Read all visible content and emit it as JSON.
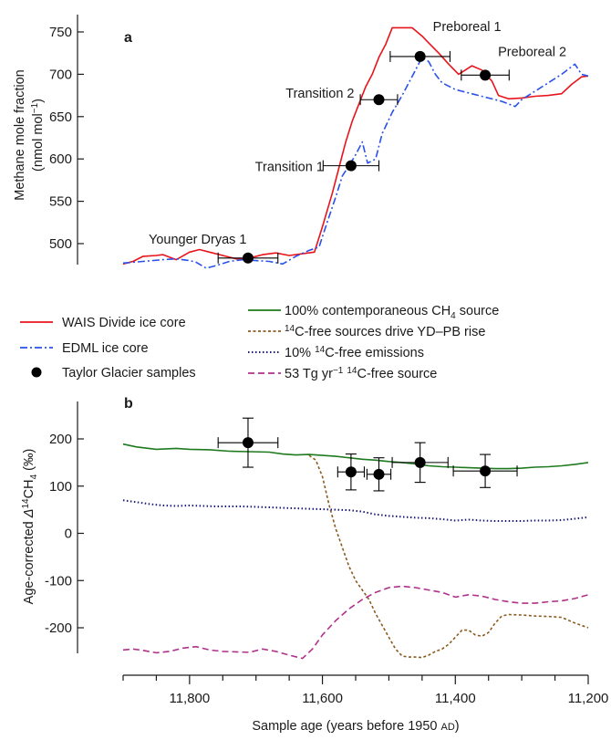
{
  "chart_data": [
    {
      "type": "line",
      "panel_label": "a",
      "ylabel_line1": "Methane mole fraction",
      "ylabel_line2": "(nmol mol",
      "ylabel_sup": "−1",
      "ylabel_close": ")",
      "xlim": [
        11900,
        11200
      ],
      "ylim": [
        470,
        760
      ],
      "yticks": [
        500,
        550,
        600,
        650,
        700,
        750
      ],
      "series": [
        {
          "name": "WAIS Divide ice core",
          "color": "#e8141c",
          "style": "solid",
          "x": [
            11900,
            11885,
            11870,
            11850,
            11840,
            11820,
            11800,
            11785,
            11770,
            11750,
            11730,
            11710,
            11690,
            11670,
            11650,
            11630,
            11612,
            11600,
            11585,
            11575,
            11565,
            11555,
            11545,
            11535,
            11525,
            11515,
            11505,
            11495,
            11480,
            11465,
            11450,
            11440,
            11425,
            11410,
            11395,
            11385,
            11375,
            11360,
            11345,
            11335,
            11320,
            11300,
            11280,
            11260,
            11240,
            11225,
            11210,
            11200
          ],
          "y": [
            476,
            479,
            485,
            486,
            487,
            481,
            490,
            493,
            490,
            486,
            482,
            483,
            487,
            489,
            486,
            488,
            490,
            520,
            560,
            590,
            620,
            645,
            665,
            685,
            700,
            720,
            735,
            755,
            755,
            755,
            745,
            737,
            725,
            712,
            700,
            705,
            710,
            705,
            692,
            675,
            671,
            672,
            674,
            675,
            677,
            688,
            697,
            698
          ]
        },
        {
          "name": "EDML ice core",
          "color": "#2a52e8",
          "style": "dashdot",
          "x": [
            11900,
            11870,
            11840,
            11820,
            11800,
            11790,
            11775,
            11760,
            11740,
            11720,
            11700,
            11680,
            11660,
            11640,
            11620,
            11605,
            11595,
            11580,
            11570,
            11560,
            11550,
            11540,
            11532,
            11520,
            11510,
            11495,
            11480,
            11470,
            11460,
            11450,
            11440,
            11430,
            11420,
            11400,
            11390,
            11370,
            11350,
            11330,
            11320,
            11310,
            11300,
            11280,
            11260,
            11240,
            11220,
            11210,
            11200
          ],
          "y": [
            477,
            479,
            481,
            482,
            480,
            478,
            471,
            474,
            479,
            481,
            480,
            479,
            476,
            485,
            492,
            496,
            520,
            555,
            580,
            592,
            605,
            620,
            595,
            600,
            630,
            655,
            675,
            690,
            705,
            720,
            715,
            700,
            690,
            682,
            680,
            676,
            672,
            668,
            665,
            662,
            670,
            680,
            690,
            700,
            712,
            700,
            698
          ]
        }
      ],
      "samples": {
        "name": "Taylor Glacier samples",
        "color": "#000000",
        "points": [
          {
            "label": "Younger Dryas 1",
            "x": 11712,
            "y": 483,
            "xerr": 45,
            "yerr": 3
          },
          {
            "label": "Transition 1",
            "x": 11557,
            "y": 592,
            "xerr": 42,
            "yerr": 3
          },
          {
            "label": "Transition 2",
            "x": 11515,
            "y": 670,
            "xerr": 28,
            "yerr": 3
          },
          {
            "label": "Preboreal 1",
            "x": 11453,
            "y": 721,
            "xerr": 45,
            "yerr": 3
          },
          {
            "label": "Preboreal 2",
            "x": 11355,
            "y": 699,
            "xerr": 36,
            "yerr": 3
          }
        ]
      }
    },
    {
      "type": "line",
      "panel_label": "b",
      "ylabel_pre": "Age-corrected ",
      "ylabel_delta": "Δ",
      "ylabel_sup": "14",
      "ylabel_post": "CH",
      "ylabel_sub": "4",
      "ylabel_unit": " (‰)",
      "xlabel": "Sample age (years before 1950 ",
      "xlabel_ad": "AD",
      "xlabel_close": ")",
      "xlim": [
        11900,
        11200
      ],
      "ylim": [
        -280,
        250
      ],
      "xticks": [
        11800,
        11600,
        11400,
        11200
      ],
      "xtick_labels": [
        "11,800",
        "11,600",
        "11,400",
        "11,200"
      ],
      "yticks": [
        200,
        100,
        0,
        -100,
        -200
      ],
      "ytick_labels": [
        "200",
        "100",
        "0",
        "-100",
        "-200"
      ],
      "series": [
        {
          "name": "100% contemporaneous CH4 source",
          "color": "#1e7a1e",
          "style": "solid",
          "x": [
            11900,
            11880,
            11850,
            11820,
            11800,
            11770,
            11740,
            11710,
            11680,
            11660,
            11640,
            11620,
            11600,
            11580,
            11560,
            11540,
            11520,
            11500,
            11480,
            11460,
            11440,
            11420,
            11400,
            11380,
            11360,
            11340,
            11320,
            11300,
            11280,
            11260,
            11240,
            11220,
            11200
          ],
          "y": [
            189,
            183,
            178,
            180,
            178,
            177,
            174,
            173,
            172,
            168,
            166,
            167,
            165,
            163,
            160,
            157,
            155,
            152,
            150,
            147,
            143,
            141,
            140,
            139,
            138,
            137,
            137,
            138,
            140,
            141,
            143,
            146,
            150
          ]
        },
        {
          "name": "14C-free sources drive YD–PB rise",
          "color": "#8a5a1e",
          "style": "dash",
          "x": [
            11620,
            11610,
            11600,
            11590,
            11580,
            11570,
            11560,
            11550,
            11540,
            11530,
            11520,
            11510,
            11500,
            11490,
            11480,
            11470,
            11460,
            11450,
            11440,
            11430,
            11420,
            11410,
            11400,
            11390,
            11380,
            11370,
            11360,
            11350,
            11340,
            11330,
            11320,
            11300,
            11280,
            11260,
            11240,
            11220,
            11200
          ],
          "y": [
            165,
            155,
            120,
            60,
            10,
            -30,
            -70,
            -100,
            -120,
            -140,
            -170,
            -195,
            -220,
            -245,
            -260,
            -262,
            -262,
            -263,
            -258,
            -250,
            -245,
            -235,
            -220,
            -205,
            -205,
            -215,
            -218,
            -210,
            -190,
            -175,
            -172,
            -173,
            -175,
            -176,
            -178,
            -190,
            -200
          ]
        },
        {
          "name": "10% 14C-free emissions",
          "color": "#1a1a6e",
          "style": "dot",
          "x": [
            11900,
            11880,
            11860,
            11840,
            11820,
            11800,
            11780,
            11760,
            11740,
            11720,
            11700,
            11680,
            11660,
            11640,
            11620,
            11600,
            11580,
            11560,
            11540,
            11520,
            11500,
            11480,
            11460,
            11440,
            11420,
            11400,
            11380,
            11360,
            11340,
            11320,
            11300,
            11280,
            11260,
            11240,
            11220,
            11200
          ],
          "y": [
            70,
            66,
            62,
            59,
            58,
            59,
            58,
            57,
            57,
            57,
            56,
            55,
            54,
            53,
            52,
            51,
            50,
            49,
            46,
            40,
            37,
            35,
            33,
            32,
            30,
            27,
            29,
            27,
            26,
            26,
            26,
            27,
            27,
            28,
            31,
            34
          ]
        },
        {
          "name": "53 Tg yr−1 14C-free source",
          "color": "#b0308a",
          "style": "longdash",
          "x": [
            11900,
            11885,
            11870,
            11850,
            11830,
            11810,
            11790,
            11770,
            11750,
            11730,
            11710,
            11690,
            11670,
            11650,
            11630,
            11615,
            11600,
            11580,
            11560,
            11540,
            11520,
            11500,
            11480,
            11460,
            11440,
            11420,
            11400,
            11380,
            11360,
            11340,
            11320,
            11300,
            11280,
            11260,
            11240,
            11220,
            11200
          ],
          "y": [
            -247,
            -245,
            -248,
            -253,
            -250,
            -243,
            -240,
            -247,
            -250,
            -251,
            -252,
            -245,
            -250,
            -258,
            -265,
            -245,
            -215,
            -185,
            -160,
            -140,
            -125,
            -115,
            -112,
            -115,
            -120,
            -125,
            -135,
            -130,
            -133,
            -140,
            -145,
            -148,
            -148,
            -145,
            -143,
            -138,
            -130
          ]
        }
      ],
      "samples": {
        "name": "Taylor Glacier samples",
        "color": "#000000",
        "points": [
          {
            "x": 11712,
            "y": 192,
            "xerr": 45,
            "yerr": 52
          },
          {
            "x": 11557,
            "y": 130,
            "xerr": 20,
            "yerr": 38
          },
          {
            "x": 11515,
            "y": 125,
            "xerr": 18,
            "yerr": 35
          },
          {
            "x": 11453,
            "y": 150,
            "xerr": 42,
            "yerr": 42
          },
          {
            "x": 11355,
            "y": 132,
            "xerr": 48,
            "yerr": 35
          }
        ]
      }
    }
  ],
  "legend": {
    "col1": [
      {
        "text": "WAIS Divide ice core",
        "key": "wais"
      },
      {
        "text": "EDML ice core",
        "key": "edml"
      },
      {
        "text": "Taylor Glacier samples",
        "key": "taylor"
      }
    ],
    "col2": [
      {
        "pre": "100% contemporaneous CH",
        "sub": "4",
        "post": " source",
        "key": "contemp"
      },
      {
        "sup": "14",
        "post": "C-free sources drive YD–PB rise",
        "key": "free"
      },
      {
        "pre": "10% ",
        "sup": "14",
        "post": "C-free emissions",
        "key": "ten"
      },
      {
        "pre": "53 Tg yr",
        "sup1": "−1",
        "mid": " ",
        "sup": "14",
        "post": "C-free source",
        "key": "fiftythree"
      }
    ]
  }
}
